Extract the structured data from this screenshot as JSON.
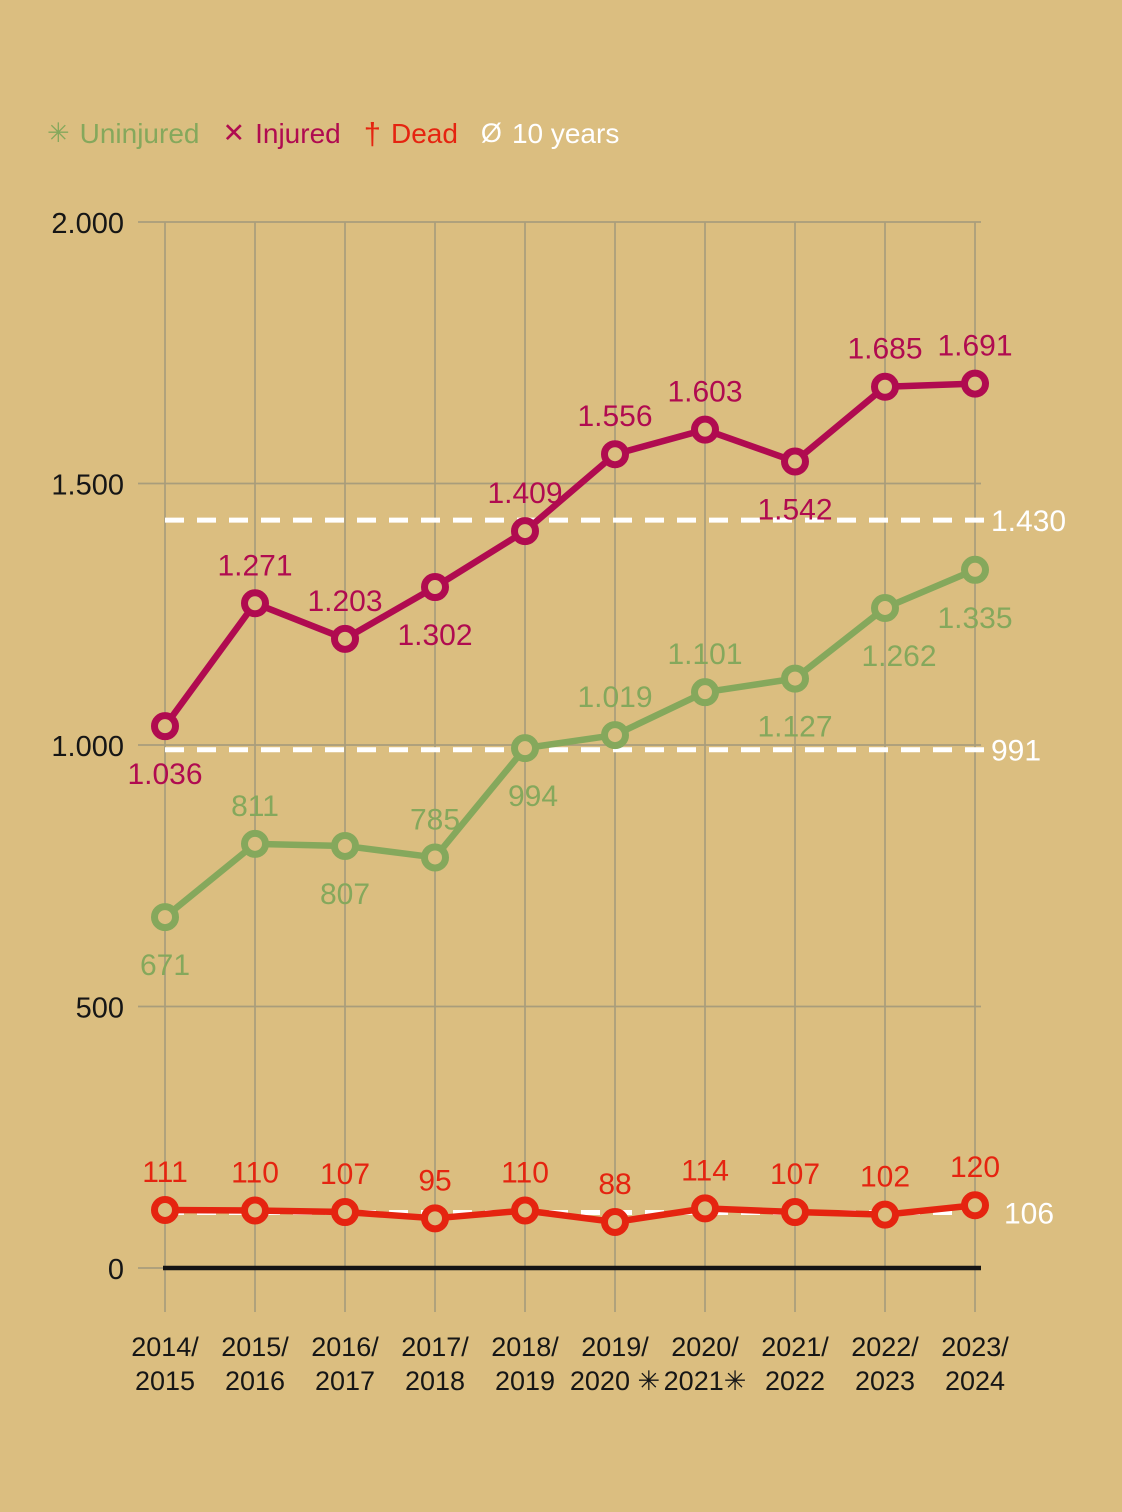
{
  "canvas": {
    "background": "#dbbe80",
    "grid_color": "#a99d7b",
    "axis_line_color": "#141414",
    "tick_text_color": "#161616",
    "average_line_color": "#ffffff"
  },
  "legend": {
    "items": [
      {
        "id": "uninjured",
        "symbol": "✳",
        "label": "Uninjured",
        "color": "#85a85c"
      },
      {
        "id": "injured",
        "symbol": "✕",
        "label": "Injured",
        "color": "#b00b50"
      },
      {
        "id": "dead",
        "symbol": "†",
        "label": "Dead",
        "color": "#e52410"
      },
      {
        "id": "average",
        "symbol": "Ø",
        "label": "10 years",
        "color": "#ffffff"
      }
    ]
  },
  "chart_data": {
    "type": "line",
    "title": "",
    "xlabel": "",
    "ylabel": "",
    "ylim": [
      0,
      2000
    ],
    "grid": true,
    "legend_position": "top-left",
    "yticks": [
      {
        "value": 0,
        "label": "0"
      },
      {
        "value": 500,
        "label": "500"
      },
      {
        "value": 1000,
        "label": "1.000"
      },
      {
        "value": 1500,
        "label": "1.500"
      },
      {
        "value": 2000,
        "label": "2.000"
      }
    ],
    "categories": [
      {
        "top": "2014/",
        "bottom": "2015"
      },
      {
        "top": "2015/",
        "bottom": "2016"
      },
      {
        "top": "2016/",
        "bottom": "2017"
      },
      {
        "top": "2017/",
        "bottom": "2018"
      },
      {
        "top": "2018/",
        "bottom": "2019"
      },
      {
        "top": "2019/",
        "bottom": "2020 ✳"
      },
      {
        "top": "2020/",
        "bottom": "2021✳"
      },
      {
        "top": "2021/",
        "bottom": "2022"
      },
      {
        "top": "2022/",
        "bottom": "2023"
      },
      {
        "top": "2023/",
        "bottom": "2024"
      }
    ],
    "series": [
      {
        "id": "injured",
        "name": "Injured",
        "color": "#b00b50",
        "values": [
          1036,
          1271,
          1203,
          1302,
          1409,
          1556,
          1603,
          1542,
          1685,
          1691
        ],
        "value_labels": [
          "1.036",
          "1.271",
          "1.203",
          "1.302",
          "1.409",
          "1.556",
          "1.603",
          "1.542",
          "1.685",
          "1.691"
        ],
        "label_sides": [
          "below",
          "above",
          "above",
          "below",
          "above",
          "above",
          "above",
          "below",
          "above",
          "above"
        ],
        "label_dx": [
          0,
          0,
          0,
          0,
          0,
          0,
          0,
          0,
          0,
          0
        ],
        "average": 1430,
        "average_label": "1.430"
      },
      {
        "id": "uninjured",
        "name": "Uninjured",
        "color": "#85a85c",
        "values": [
          671,
          811,
          807,
          785,
          994,
          1019,
          1101,
          1127,
          1262,
          1335
        ],
        "value_labels": [
          "671",
          "811",
          "807",
          "785",
          "994",
          "1.019",
          "1.101",
          "1.127",
          "1.262",
          "1.335"
        ],
        "label_sides": [
          "below",
          "above",
          "below",
          "above",
          "below",
          "above",
          "above",
          "below",
          "below",
          "below"
        ],
        "label_dx": [
          0,
          0,
          0,
          0,
          8,
          0,
          0,
          0,
          14,
          0
        ],
        "average": 991,
        "average_label": "991"
      },
      {
        "id": "dead",
        "name": "Dead",
        "color": "#e52410",
        "values": [
          111,
          110,
          107,
          95,
          110,
          88,
          114,
          107,
          102,
          120
        ],
        "value_labels": [
          "111",
          "110",
          "107",
          "95",
          "110",
          "88",
          "114",
          "107",
          "102",
          "120"
        ],
        "label_sides": [
          "above",
          "above",
          "above",
          "above",
          "above",
          "above",
          "above",
          "above",
          "above",
          "above"
        ],
        "label_dx": [
          0,
          0,
          0,
          0,
          0,
          0,
          0,
          0,
          0,
          0
        ],
        "average": 106,
        "average_label": "106"
      }
    ]
  }
}
